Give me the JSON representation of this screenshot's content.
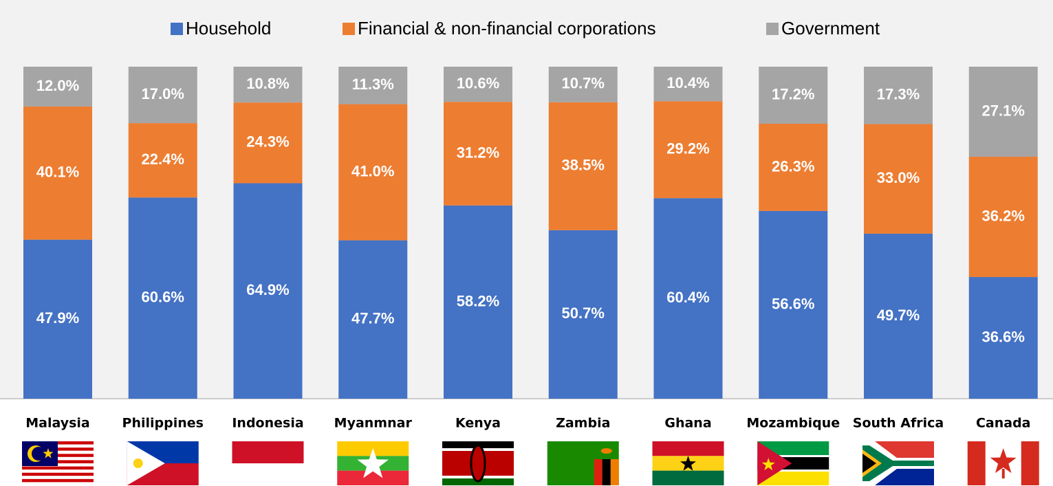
{
  "chart_data": {
    "type": "stacked_bar",
    "categories": [
      "Malaysia",
      "Philippines",
      "Indonesia",
      "Myanmnar",
      "Kenya",
      "Zambia",
      "Ghana",
      "Mozambique",
      "South Africa",
      "Canada"
    ],
    "series": [
      {
        "name": "Household",
        "color": "#4472c4",
        "values": [
          47.9,
          60.6,
          64.9,
          47.7,
          58.2,
          50.7,
          60.4,
          56.6,
          49.7,
          36.6
        ],
        "value_labels": [
          "47.9%",
          "60.6%",
          "64.9%",
          "47.7%",
          "58.2%",
          "50.7%",
          "60.4%",
          "56.6%",
          "49.7%",
          "36.6%"
        ]
      },
      {
        "name": "Financial & non-financial corporations",
        "color": "#ed7d31",
        "values": [
          40.1,
          22.4,
          24.3,
          41.0,
          31.2,
          38.5,
          29.2,
          26.3,
          33.0,
          36.2
        ],
        "value_labels": [
          "40.1%",
          "22.4%",
          "24.3%",
          "41.0%",
          "31.2%",
          "38.5%",
          "29.2%",
          "26.3%",
          "33.0%",
          "36.2%"
        ]
      },
      {
        "name": "Government",
        "color": "#a5a5a5",
        "values": [
          12.0,
          17.0,
          10.8,
          11.3,
          10.6,
          10.7,
          10.4,
          17.2,
          17.3,
          27.1
        ],
        "value_labels": [
          "12.0%",
          "17.0%",
          "10.8%",
          "11.3%",
          "10.6%",
          "10.7%",
          "10.4%",
          "17.2%",
          "17.3%",
          "27.1%"
        ]
      }
    ]
  }
}
